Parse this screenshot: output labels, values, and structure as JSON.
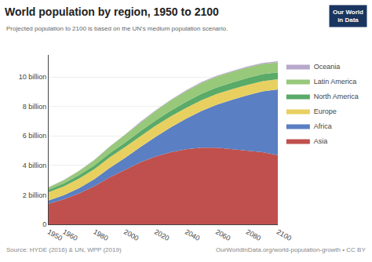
{
  "chart_data": {
    "type": "area",
    "stacked": true,
    "title": "World population by region, 1950 to 2100",
    "subtitle": "Projected population to 2100 is based on the UN's medium population scenario.",
    "annotations": [
      {
        "text": "Source: HYDE (2016) & UN, WPP (2019)"
      },
      {
        "text": "OurWorldInData.org/world-population-growth • CC BY"
      },
      {
        "text": "Our World\nin Data",
        "color": "#1a3560"
      }
    ],
    "x": [
      1950,
      1960,
      1970,
      1980,
      1990,
      2000,
      2010,
      2020,
      2030,
      2040,
      2050,
      2060,
      2070,
      2080,
      2090,
      2100
    ],
    "series": [
      {
        "name": "Asia",
        "color": "#c0504d",
        "values": [
          1.4,
          1.7,
          2.1,
          2.6,
          3.2,
          3.7,
          4.2,
          4.6,
          4.9,
          5.1,
          5.2,
          5.2,
          5.1,
          5.0,
          4.9,
          4.7
        ]
      },
      {
        "name": "Africa",
        "color": "#5a7fc2",
        "values": [
          0.23,
          0.28,
          0.36,
          0.47,
          0.63,
          0.81,
          1.04,
          1.34,
          1.69,
          2.07,
          2.49,
          2.92,
          3.35,
          3.76,
          4.12,
          4.46
        ]
      },
      {
        "name": "Europe",
        "color": "#e8d060",
        "values": [
          0.55,
          0.6,
          0.66,
          0.69,
          0.72,
          0.73,
          0.74,
          0.75,
          0.74,
          0.74,
          0.74,
          0.73,
          0.72,
          0.71,
          0.7,
          0.69
        ]
      },
      {
        "name": "North America",
        "color": "#5aaa68",
        "values": [
          0.17,
          0.2,
          0.23,
          0.25,
          0.28,
          0.31,
          0.34,
          0.37,
          0.39,
          0.41,
          0.43,
          0.44,
          0.45,
          0.46,
          0.47,
          0.47
        ]
      },
      {
        "name": "Latin America",
        "color": "#98c87a",
        "values": [
          0.17,
          0.22,
          0.28,
          0.36,
          0.44,
          0.52,
          0.6,
          0.65,
          0.7,
          0.73,
          0.74,
          0.74,
          0.73,
          0.72,
          0.7,
          0.68
        ]
      },
      {
        "name": "Oceania",
        "color": "#b8a8cc",
        "values": [
          0.013,
          0.016,
          0.019,
          0.023,
          0.027,
          0.031,
          0.037,
          0.042,
          0.048,
          0.053,
          0.057,
          0.061,
          0.064,
          0.067,
          0.069,
          0.071
        ]
      }
    ],
    "xlim": [
      1950,
      2100
    ],
    "xticks": [
      1950,
      1960,
      1980,
      2000,
      2020,
      2040,
      2060,
      2080,
      2100
    ],
    "ylim": [
      0,
      11.5
    ],
    "yticks": [
      0,
      {
        "value": 2,
        "label": "2 billion"
      },
      {
        "value": 4,
        "label": "4 billion"
      },
      {
        "value": 6,
        "label": "6 billion"
      },
      {
        "value": 8,
        "label": "8 billion"
      },
      {
        "value": 10,
        "label": "10 billion"
      }
    ],
    "grid": true,
    "legend": "right"
  }
}
